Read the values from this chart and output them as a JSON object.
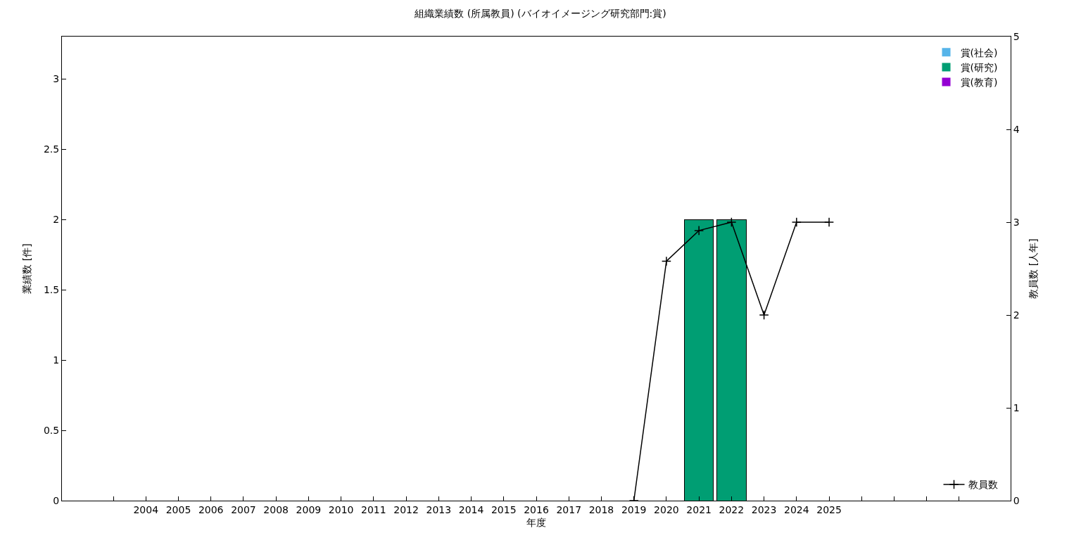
{
  "chart_data": {
    "type": "bar",
    "title": "組織業績数 (所属教員) (バイオイメージング研究部門:賞)",
    "xlabel": "年度",
    "ylabel": "業績数 [件]",
    "y2label": "教員数 [人年]",
    "categories": [
      null,
      "2004",
      "2005",
      "2006",
      "2007",
      "2008",
      "2009",
      "2010",
      "2011",
      "2012",
      "2013",
      "2014",
      "2015",
      "2016",
      "2017",
      "2018",
      "2019",
      "2020",
      "2021",
      "2022",
      "2023",
      "2024",
      "2025",
      null,
      null,
      null,
      null
    ],
    "stacked": true,
    "legend": "top right",
    "grid": false,
    "ylim": [
      0,
      3.3
    ],
    "yticks": [
      0,
      0.5,
      1,
      1.5,
      2,
      2.5,
      3
    ],
    "y2lim": [
      0,
      5
    ],
    "y2ticks": [
      0,
      1,
      2,
      3,
      4,
      5
    ],
    "series": [
      {
        "name": "賞(社会)",
        "color": "#56b4e9",
        "values": [
          null,
          0,
          0,
          0,
          0,
          0,
          0,
          0,
          0,
          0,
          0,
          0,
          0,
          0,
          0,
          0,
          0,
          0,
          0,
          0,
          0,
          0,
          0,
          null,
          null,
          null,
          null
        ]
      },
      {
        "name": "賞(研究)",
        "color": "#009e73",
        "values": [
          null,
          0,
          0,
          0,
          0,
          0,
          0,
          0,
          0,
          0,
          0,
          0,
          0,
          0,
          0,
          0,
          0,
          0,
          2,
          2,
          0,
          0,
          0,
          null,
          null,
          null,
          null
        ]
      },
      {
        "name": "賞(教育)",
        "color": "#9400d3",
        "values": [
          null,
          0,
          0,
          0,
          0,
          0,
          0,
          0,
          0,
          0,
          0,
          0,
          0,
          0,
          0,
          0,
          0,
          0,
          0,
          0,
          0,
          0,
          0,
          null,
          null,
          null,
          null
        ]
      },
      {
        "name": "教員数",
        "type": "line",
        "axis": "y2",
        "color": "#000000",
        "marker": "cross",
        "line_style": "solid",
        "values": [
          null,
          null,
          null,
          null,
          null,
          null,
          null,
          null,
          null,
          null,
          null,
          null,
          null,
          null,
          null,
          null,
          0,
          2.58,
          2.91,
          3,
          2,
          3,
          3,
          null,
          null,
          null,
          null
        ]
      }
    ]
  }
}
